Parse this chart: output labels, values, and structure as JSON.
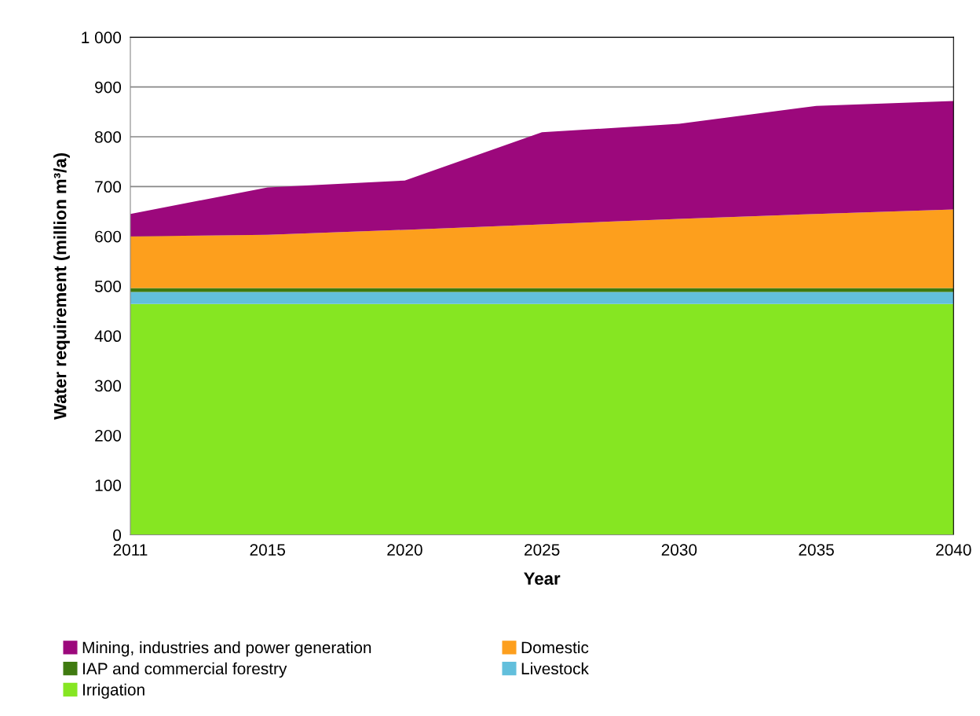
{
  "chart_data": {
    "type": "area",
    "stacked": true,
    "xlabel": "Year",
    "ylabel": "Water requirement (million m³/a)",
    "categories": [
      "2011",
      "2015",
      "2020",
      "2025",
      "2030",
      "2035",
      "2040"
    ],
    "series": [
      {
        "name": "Irrigation",
        "color": "#86e622",
        "values": [
          464,
          464,
          464,
          464,
          464,
          464,
          464
        ]
      },
      {
        "name": "Livestock",
        "color": "#62bfdc",
        "values": [
          24,
          24,
          24,
          24,
          24,
          24,
          24
        ]
      },
      {
        "name": "IAP and commercial forestry",
        "color": "#3f7a10",
        "values": [
          8,
          8,
          8,
          8,
          8,
          8,
          8
        ]
      },
      {
        "name": "Domestic",
        "color": "#fd9f1d",
        "values": [
          104,
          107,
          117,
          128,
          139,
          149,
          158
        ]
      },
      {
        "name": "Mining, industries and power generation",
        "color": "#9c087c",
        "values": [
          45,
          95,
          99,
          185,
          191,
          217,
          218
        ]
      }
    ],
    "ylim": [
      0,
      1000
    ],
    "yticks": [
      0,
      100,
      200,
      300,
      400,
      500,
      600,
      700,
      800,
      900,
      {
        "value": 1000,
        "label": "1 000"
      }
    ],
    "grid": "y",
    "legend": "bottom"
  }
}
